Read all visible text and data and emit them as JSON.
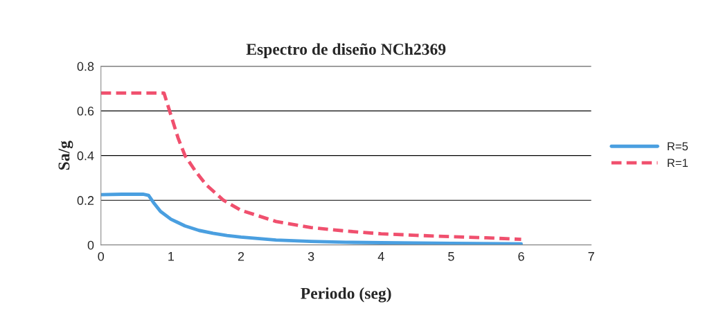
{
  "chart_data": {
    "type": "line",
    "title": "Espectro de diseño NCh2369",
    "xlabel": "Periodo (seg)",
    "ylabel": "Sa/g",
    "xlim": [
      0,
      7
    ],
    "xticks": [
      0,
      1,
      2,
      3,
      4,
      5,
      6,
      7
    ],
    "ylim": [
      0,
      0.8
    ],
    "yticks": [
      0,
      0.2,
      0.4,
      0.6,
      0.8
    ],
    "grid": "y",
    "legend": "right",
    "series": [
      {
        "name": "R=5",
        "color": "#4a9fe0",
        "line_style": "solid",
        "x": [
          0,
          0.3,
          0.6,
          0.68,
          0.75,
          0.85,
          1.0,
          1.2,
          1.4,
          1.6,
          1.8,
          2.0,
          2.5,
          3.0,
          3.5,
          4.0,
          5.0,
          6.0
        ],
        "values": [
          0.225,
          0.227,
          0.227,
          0.222,
          0.19,
          0.15,
          0.115,
          0.085,
          0.065,
          0.052,
          0.042,
          0.035,
          0.022,
          0.016,
          0.012,
          0.01,
          0.007,
          0.005
        ]
      },
      {
        "name": "R=1",
        "color": "#f0506e",
        "line_style": "dashed",
        "x": [
          0,
          0.5,
          0.9,
          1.0,
          1.1,
          1.2,
          1.35,
          1.5,
          1.75,
          2.0,
          2.5,
          3.0,
          3.5,
          4.0,
          4.5,
          5.0,
          5.5,
          6.0
        ],
        "values": [
          0.68,
          0.68,
          0.68,
          0.58,
          0.48,
          0.4,
          0.33,
          0.27,
          0.2,
          0.155,
          0.105,
          0.078,
          0.062,
          0.05,
          0.043,
          0.037,
          0.032,
          0.025
        ]
      }
    ]
  }
}
